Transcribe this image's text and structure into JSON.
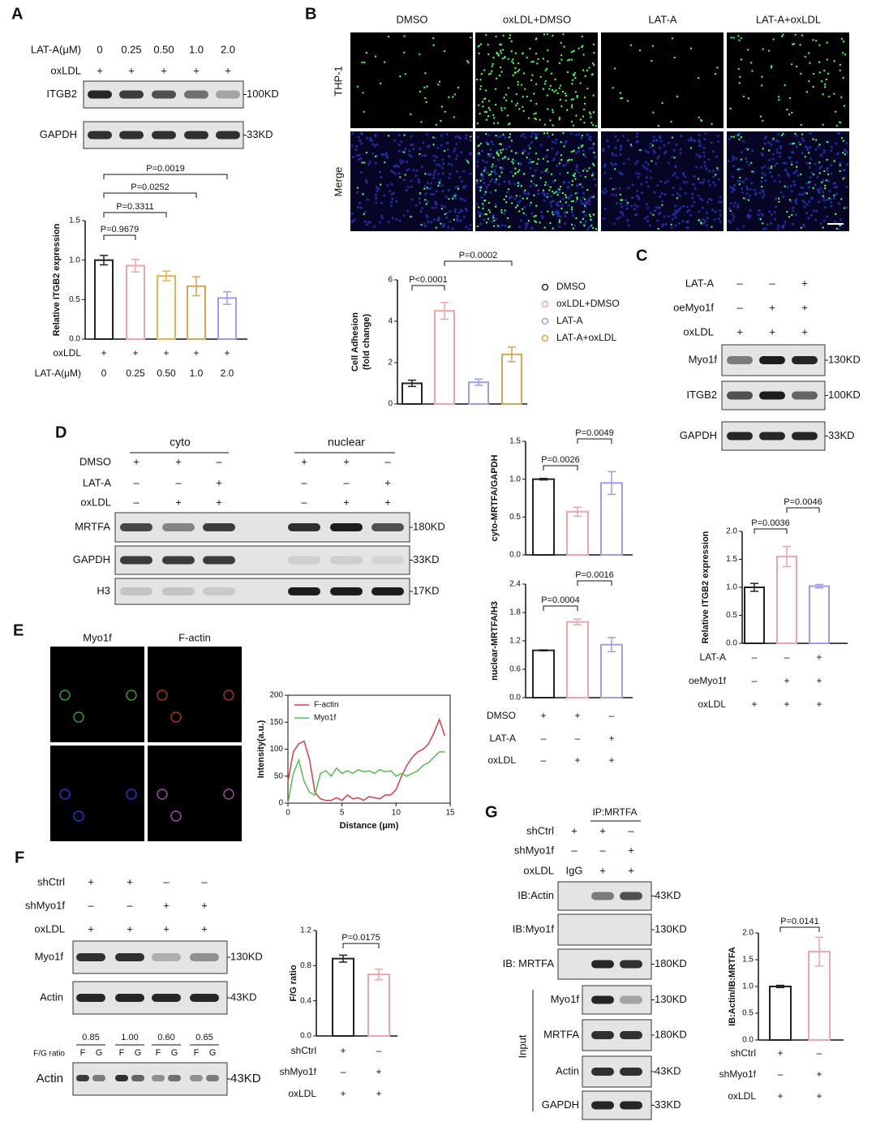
{
  "panels": {
    "A": {
      "label": "A",
      "blot": {
        "sign_rows": [
          {
            "name": "LAT-A(μM)",
            "values": [
              "0",
              "0.25",
              "0.50",
              "1.0",
              "2.0"
            ]
          },
          {
            "name": "oxLDL",
            "values": [
              "+",
              "+",
              "+",
              "+",
              "+"
            ]
          }
        ],
        "rows": [
          {
            "name": "ITGB2",
            "size": "100KD"
          },
          {
            "name": "GAPDH",
            "size": "33KD"
          }
        ]
      }
    },
    "B": {
      "label": "B",
      "images": {
        "columns": [
          "DMSO",
          "oxLDL+DMSO",
          "LAT-A",
          "LAT-A+oxLDL"
        ],
        "rows": [
          "THP-1",
          "Merge"
        ]
      }
    },
    "C": {
      "label": "C",
      "blot": {
        "sign_rows": [
          {
            "name": "LAT-A",
            "values": [
              "–",
              "–",
              "+"
            ]
          },
          {
            "name": "oeMyo1f",
            "values": [
              "–",
              "+",
              "+"
            ]
          },
          {
            "name": "oxLDL",
            "values": [
              "+",
              "+",
              "+"
            ]
          }
        ],
        "rows": [
          {
            "name": "Myo1f",
            "size": "130KD"
          },
          {
            "name": "ITGB2",
            "size": "100KD"
          },
          {
            "name": "GAPDH",
            "size": "33KD"
          }
        ]
      }
    },
    "D": {
      "label": "D",
      "groups": [
        "cyto",
        "nuclear"
      ],
      "blot": {
        "sign_rows": [
          {
            "name": "DMSO",
            "values": [
              "+",
              "+",
              "–",
              "+",
              "+",
              "–"
            ]
          },
          {
            "name": "LAT-A",
            "values": [
              "–",
              "–",
              "+",
              "–",
              "–",
              "+"
            ]
          },
          {
            "name": "oxLDL",
            "values": [
              "–",
              "+",
              "+",
              "–",
              "+",
              "+"
            ]
          }
        ],
        "rows": [
          {
            "name": "MRTFA",
            "size": "180KD"
          },
          {
            "name": "GAPDH",
            "size": "33KD"
          },
          {
            "name": "H3",
            "size": "17KD"
          }
        ]
      }
    },
    "E": {
      "label": "E",
      "images": {
        "columns": [
          "Myo1f",
          "F-actin"
        ]
      }
    },
    "F": {
      "label": "F",
      "blot": {
        "sign_rows": [
          {
            "name": "shCtrl",
            "values": [
              "+",
              "+",
              "–",
              "–"
            ]
          },
          {
            "name": "shMyo1f",
            "values": [
              "–",
              "–",
              "+",
              "+"
            ]
          },
          {
            "name": "oxLDL",
            "values": [
              "+",
              "+",
              "+",
              "+"
            ]
          }
        ],
        "rows": [
          {
            "name": "Myo1f",
            "size": "130KD"
          },
          {
            "name": "Actin",
            "size": "43KD"
          }
        ]
      },
      "ratio": {
        "name": "F/G ratio",
        "values": [
          "0.85",
          "1.00",
          "0.60",
          "0.65"
        ],
        "lane_labels": [
          "F",
          "G"
        ]
      },
      "ratio_blot": {
        "name": "Actin",
        "size": "43KD"
      }
    },
    "G": {
      "label": "G",
      "group": "IP:MRTFA",
      "blot": {
        "sign_rows": [
          {
            "name": "shCtrl",
            "values": [
              "+",
              "+",
              "–"
            ]
          },
          {
            "name": "shMyo1f",
            "values": [
              "–",
              "–",
              "+"
            ]
          },
          {
            "name": "oxLDL",
            "values": [
              "IgG",
              "+",
              "+"
            ]
          }
        ],
        "rows": [
          {
            "name": "IB:Actin",
            "size": "43KD"
          },
          {
            "name": "IB:Myo1f",
            "size": "130KD"
          },
          {
            "name": "IB: MRTFA",
            "size": "180KD"
          }
        ]
      },
      "input": {
        "label": "Input",
        "rows": [
          {
            "name": "Myo1f",
            "size": "130KD"
          },
          {
            "name": "MRTFA",
            "size": "180KD"
          },
          {
            "name": "Actin",
            "size": "43KD"
          },
          {
            "name": "GAPDH",
            "size": "33KD"
          }
        ]
      }
    }
  },
  "chart_data": [
    {
      "type": "bar",
      "ylabel": "Relative ITGB2 expression",
      "categories": [
        null,
        null,
        null,
        null,
        null
      ],
      "values": [
        1.0,
        0.93,
        0.8,
        0.67,
        0.52
      ],
      "errors": [
        0.06,
        0.08,
        0.06,
        0.12,
        0.08
      ],
      "colors": [
        "#222222",
        "#f4a3a8",
        "#f0b24a",
        "#d9a650",
        "#9b9ef0"
      ],
      "ylim": [
        0,
        1.5
      ],
      "yticks": [
        {
          "value": 0,
          "label": "0.0"
        },
        0.5,
        {
          "value": 1,
          "label": "1.0"
        },
        1.5
      ],
      "annotations": [
        {
          "text": "P=0.9679",
          "from": 0,
          "to": 1
        },
        {
          "text": "P=0.3311",
          "from": 0,
          "to": 2
        },
        {
          "text": "P=0.0252",
          "from": 0,
          "to": 3
        },
        {
          "text": "P=0.0019",
          "from": 0,
          "to": 4
        }
      ],
      "x_rows": [
        {
          "name": "oxLDL",
          "labels": [
            "+",
            "+",
            "+",
            "+",
            "+"
          ]
        },
        {
          "name": "LAT-A(μM)",
          "labels": [
            "0",
            "0.25",
            "0.50",
            "1.0",
            "2.0"
          ]
        }
      ]
    },
    {
      "type": "bar",
      "ylabel": [
        "Cell Adhesion",
        "(fold change)"
      ],
      "categories": [
        null,
        null,
        null,
        null
      ],
      "values": [
        1.0,
        4.5,
        1.05,
        2.4
      ],
      "errors": [
        0.15,
        0.4,
        0.15,
        0.35
      ],
      "colors": [
        "#222222",
        "#f4a3a8",
        "#9b9ef0",
        "#d9a650"
      ],
      "ylim": [
        0,
        6
      ],
      "yticks": [
        0,
        2,
        4,
        6
      ],
      "annotations": [
        {
          "text": "P<0.0001",
          "from": 0,
          "to": 1
        },
        {
          "text": "P=0.0002",
          "from": 1,
          "to": 3
        }
      ],
      "legend": [
        "DMSO",
        "oxLDL+DMSO",
        "LAT-A",
        "LAT-A+oxLDL"
      ]
    },
    {
      "type": "bar",
      "ylabel": "Relative ITGB2 expression",
      "categories": [
        null,
        null,
        null
      ],
      "values": [
        1.0,
        1.55,
        1.02
      ],
      "errors": [
        0.07,
        0.18,
        0.03
      ],
      "colors": [
        "#222222",
        "#f4a3a8",
        "#9b9ef0"
      ],
      "ylim": [
        0,
        2
      ],
      "yticks": [
        {
          "value": 0,
          "label": "0.0"
        },
        0.5,
        {
          "value": 1,
          "label": "1.0"
        },
        1.5,
        {
          "value": 2,
          "label": "2.0"
        }
      ],
      "annotations": [
        {
          "text": "P=0.0036",
          "from": 0,
          "to": 1
        },
        {
          "text": "P=0.0046",
          "from": 1,
          "to": 2
        }
      ],
      "x_rows": [
        {
          "name": "LAT-A",
          "labels": [
            "–",
            "–",
            "+"
          ]
        },
        {
          "name": "oeMyo1f",
          "labels": [
            "–",
            "+",
            "+"
          ]
        },
        {
          "name": "oxLDL",
          "labels": [
            "+",
            "+",
            "+"
          ]
        }
      ]
    },
    {
      "type": "bar",
      "ylabel": "cyto-MRTFA/GAPDH",
      "categories": [
        null,
        null,
        null
      ],
      "values": [
        1.0,
        0.57,
        0.95
      ],
      "errors": [
        0.01,
        0.06,
        0.15
      ],
      "colors": [
        "#222222",
        "#f4a3a8",
        "#9b9ef0"
      ],
      "ylim": [
        0,
        1.5
      ],
      "yticks": [
        {
          "value": 0,
          "label": "0.0"
        },
        0.5,
        {
          "value": 1,
          "label": "1.0"
        },
        1.5
      ],
      "annotations": [
        {
          "text": "P=0.0026",
          "from": 0,
          "to": 1
        },
        {
          "text": "P=0.0049",
          "from": 1,
          "to": 2
        }
      ]
    },
    {
      "type": "bar",
      "ylabel": "nuclear-MRTFA/H3",
      "categories": [
        null,
        null,
        null
      ],
      "values": [
        1.0,
        1.6,
        1.12
      ],
      "errors": [
        0.01,
        0.06,
        0.15
      ],
      "colors": [
        "#222222",
        "#f4a3a8",
        "#9b9ef0"
      ],
      "ylim": [
        0,
        2.4
      ],
      "yticks": [
        {
          "value": 0,
          "label": "0.0"
        },
        0.6,
        1.2,
        1.8,
        2.4
      ],
      "annotations": [
        {
          "text": "P=0.0004",
          "from": 0,
          "to": 1
        },
        {
          "text": "P=0.0016",
          "from": 1,
          "to": 2
        }
      ],
      "x_rows": [
        {
          "name": "DMSO",
          "labels": [
            "+",
            "+",
            "–"
          ]
        },
        {
          "name": "LAT-A",
          "labels": [
            "–",
            "–",
            "+"
          ]
        },
        {
          "name": "oxLDL",
          "labels": [
            "–",
            "+",
            "+"
          ]
        }
      ]
    },
    {
      "type": "line",
      "xlabel": "Distance (μm)",
      "ylabel": "Intensity(a.u.)",
      "x": [
        0,
        0.5,
        1,
        1.5,
        2,
        2.5,
        3,
        3.5,
        4,
        4.5,
        5,
        5.5,
        6,
        6.5,
        7,
        7.5,
        8,
        8.5,
        9,
        9.5,
        10,
        10.5,
        11,
        11.5,
        12,
        12.5,
        13,
        13.5,
        14,
        14.5
      ],
      "series": [
        {
          "name": "F-actin",
          "color": "#e8383d",
          "values": [
            40,
            95,
            110,
            115,
            80,
            20,
            8,
            5,
            5,
            10,
            5,
            15,
            8,
            10,
            5,
            12,
            10,
            8,
            15,
            15,
            25,
            50,
            70,
            85,
            95,
            100,
            110,
            130,
            155,
            125
          ]
        },
        {
          "name": "Myo1f",
          "color": "#4cc34c",
          "values": [
            0,
            55,
            80,
            40,
            20,
            15,
            55,
            60,
            50,
            65,
            55,
            60,
            55,
            62,
            58,
            60,
            55,
            62,
            58,
            60,
            50,
            55,
            50,
            55,
            60,
            70,
            75,
            85,
            95,
            95
          ]
        }
      ],
      "xlim": [
        0,
        15
      ],
      "xticks": [
        0,
        5,
        10,
        15
      ],
      "ylim": [
        0,
        200
      ],
      "yticks": [
        0,
        50,
        100,
        150,
        200
      ],
      "legend": "upper left"
    },
    {
      "type": "bar",
      "ylabel": "F/G ratio",
      "categories": [
        null,
        null
      ],
      "values": [
        0.88,
        0.7
      ],
      "errors": [
        0.04,
        0.06
      ],
      "colors": [
        "#222222",
        "#f4a3a8"
      ],
      "ylim": [
        0,
        1.2
      ],
      "yticks": [
        {
          "value": 0,
          "label": "0.0"
        },
        0.4,
        0.8,
        1.2
      ],
      "annotations": [
        {
          "text": "P=0.0175",
          "from": 0,
          "to": 1
        }
      ],
      "x_rows": [
        {
          "name": "shCtrl",
          "labels": [
            "+",
            "–"
          ]
        },
        {
          "name": "shMyo1f",
          "labels": [
            "–",
            "+"
          ]
        },
        {
          "name": "oxLDL",
          "labels": [
            "+",
            "+"
          ]
        }
      ]
    },
    {
      "type": "bar",
      "ylabel": "IB:Actin/IB:MRTFA",
      "categories": [
        null,
        null
      ],
      "values": [
        1.0,
        1.65
      ],
      "errors": [
        0.02,
        0.27
      ],
      "colors": [
        "#222222",
        "#f4a3a8"
      ],
      "ylim": [
        0,
        2
      ],
      "yticks": [
        {
          "value": 0,
          "label": "0.0"
        },
        0.5,
        {
          "value": 1,
          "label": "1.0"
        },
        1.5,
        {
          "value": 2,
          "label": "2.0"
        }
      ],
      "annotations": [
        {
          "text": "P=0.0141",
          "from": 0,
          "to": 1
        }
      ],
      "x_rows": [
        {
          "name": "shCtrl",
          "labels": [
            "+",
            "–"
          ]
        },
        {
          "name": "shMyo1f",
          "labels": [
            "–",
            "+"
          ]
        },
        {
          "name": "oxLDL",
          "labels": [
            "+",
            "+"
          ]
        }
      ]
    }
  ]
}
